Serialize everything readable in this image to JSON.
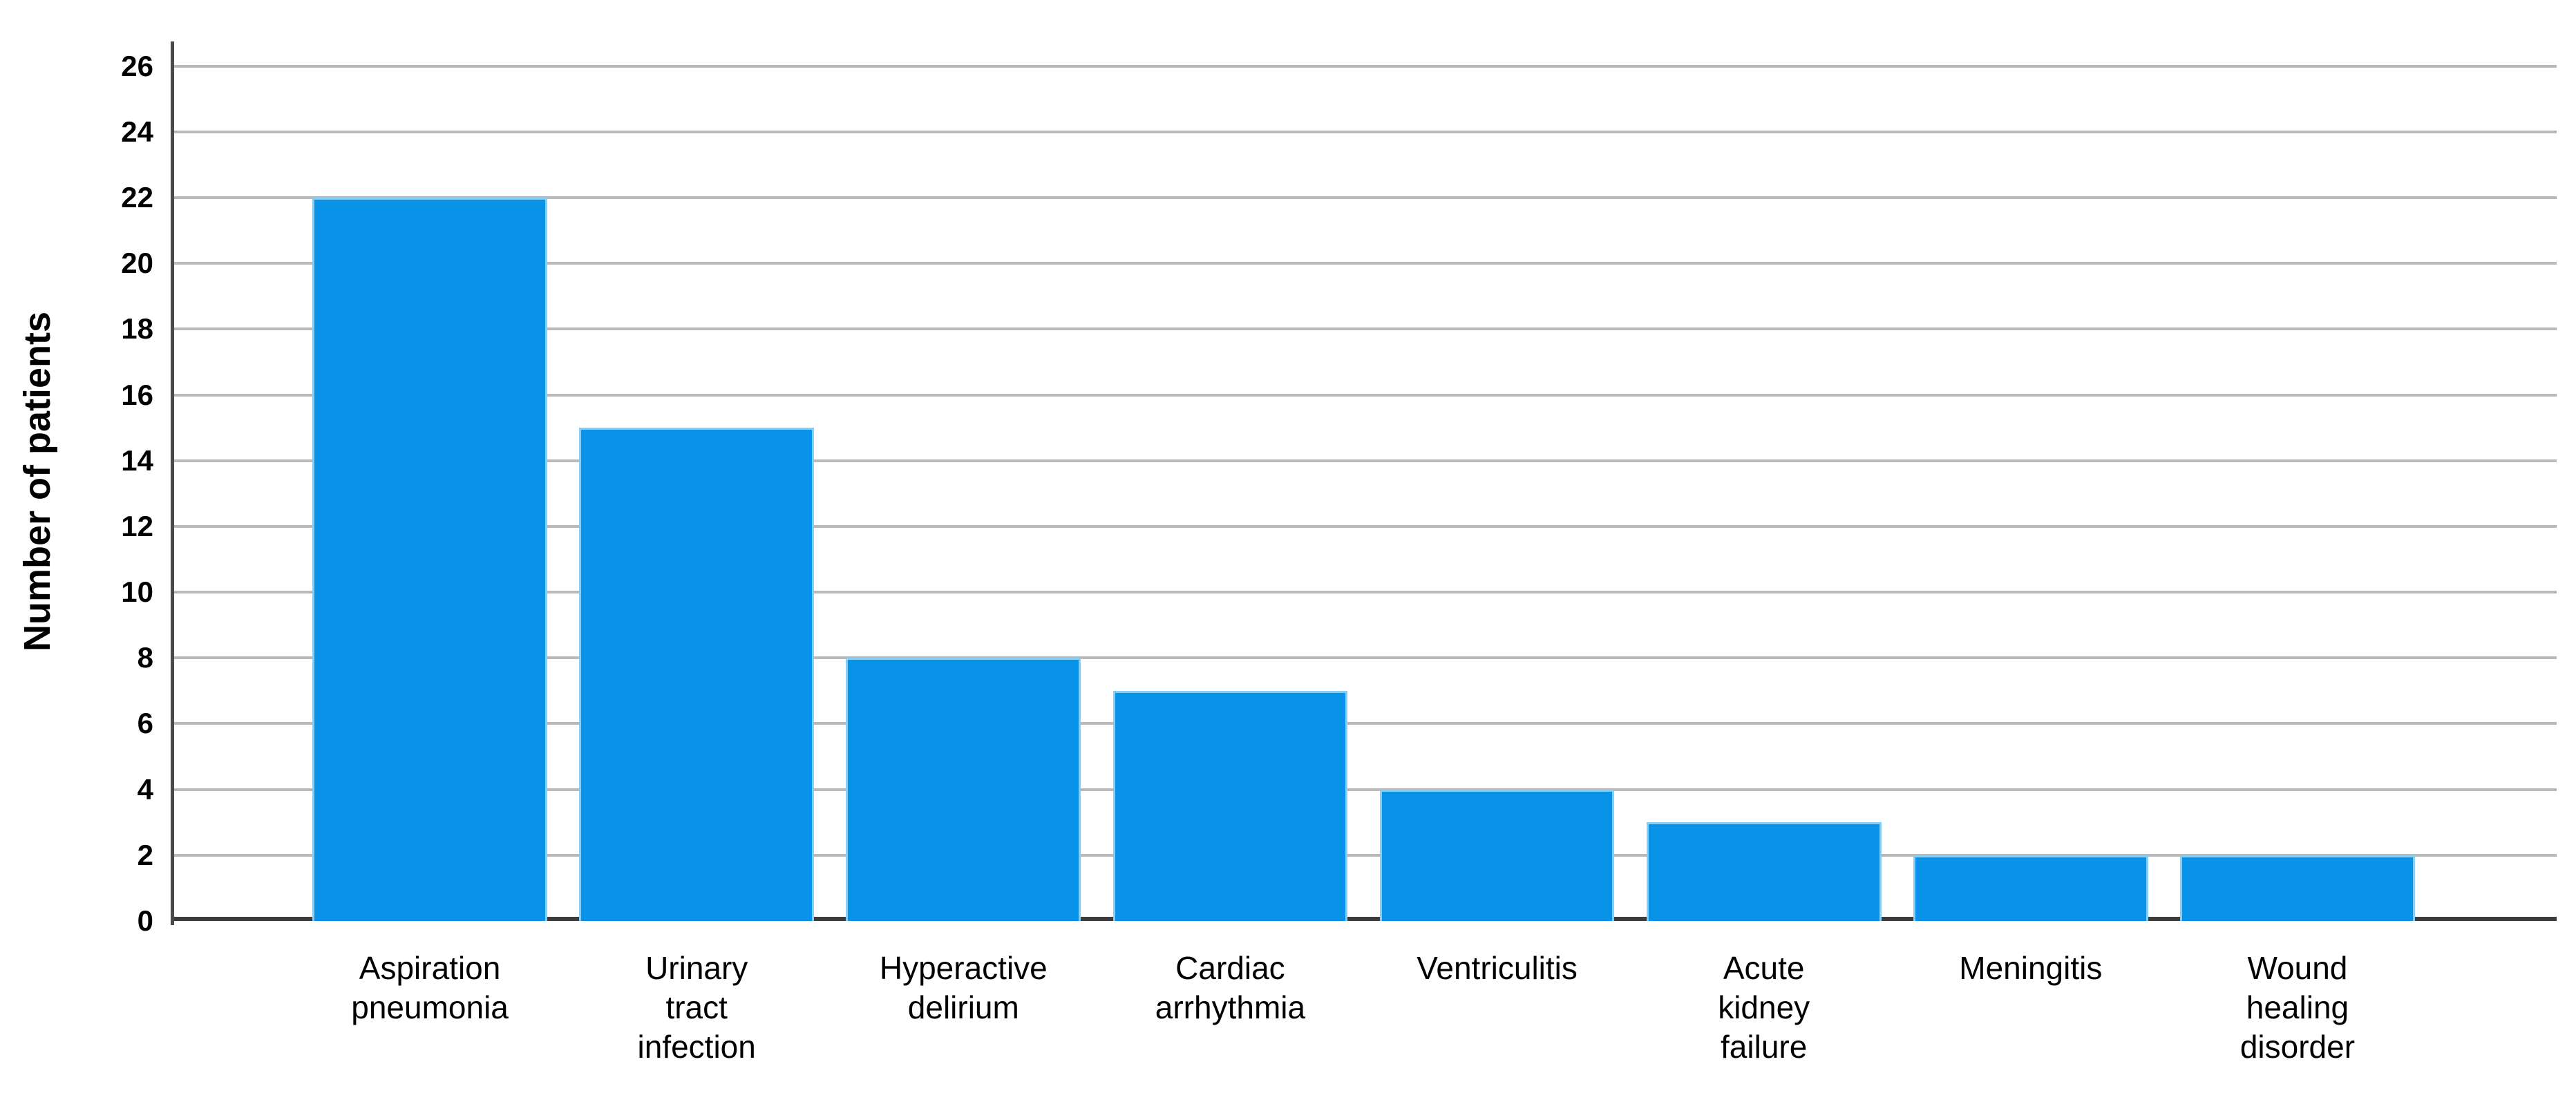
{
  "chart_data": {
    "type": "bar",
    "ylabel": "Number of patients",
    "categories": [
      "Aspiration pneumonia",
      "Urinary tract infection",
      "Hyperactive delirium",
      "Cardiac arrhythmia",
      "Ventriculitis",
      "Acute kidney failure",
      "Meningitis",
      "Wound healing disorder"
    ],
    "category_lines": [
      [
        "Aspiration",
        "pneumonia"
      ],
      [
        "Urinary",
        "tract",
        "infection"
      ],
      [
        "Hyperactive",
        "delirium"
      ],
      [
        "Cardiac",
        "arrhythmia"
      ],
      [
        "Ventriculitis"
      ],
      [
        "Acute",
        "kidney",
        "failure"
      ],
      [
        "Meningitis"
      ],
      [
        "Wound",
        "healing",
        "disorder"
      ]
    ],
    "values": [
      22,
      15,
      8,
      7,
      4,
      3,
      2,
      2
    ],
    "y_ticks": [
      0,
      2,
      4,
      6,
      8,
      10,
      12,
      14,
      16,
      18,
      20,
      22,
      24,
      26
    ],
    "ylim": [
      0,
      26.75
    ],
    "grid": "horizontal",
    "legend": "none",
    "colors": {
      "bar": "#0892e8",
      "bar_edge": "#85cef4",
      "grid": "#b9b9b9",
      "axis": "#4a4a4a",
      "axis_dark": "#3c3c3c",
      "text": "#000000",
      "background": "#ffffff"
    }
  }
}
